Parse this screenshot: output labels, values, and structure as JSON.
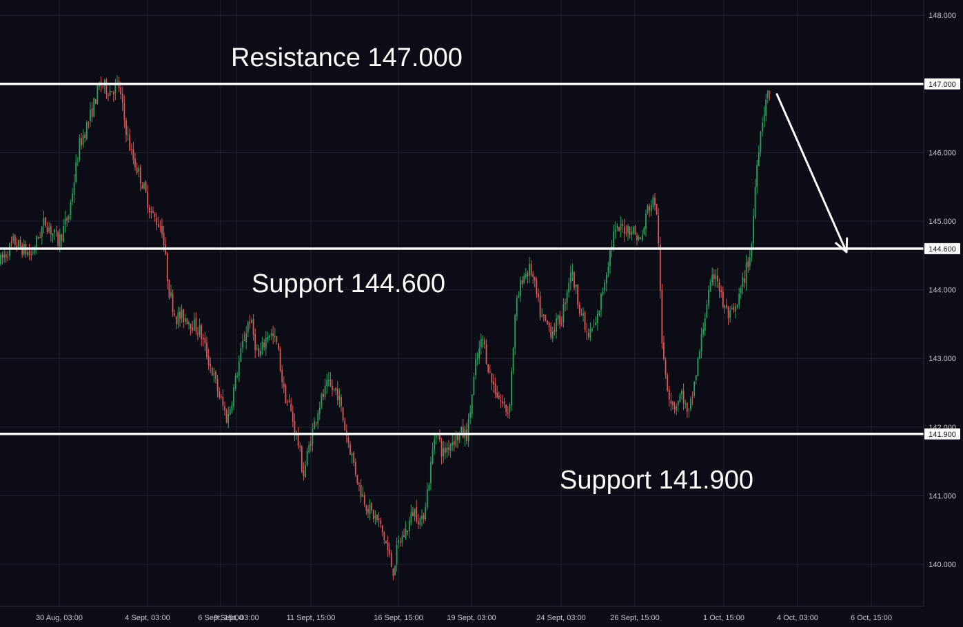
{
  "chart_data": {
    "type": "candlestick",
    "instrument": "",
    "ylim": [
      139.3,
      148.2
    ],
    "y_ticks": [
      "140.000",
      "141.000",
      "142.000",
      "143.000",
      "144.000",
      "145.000",
      "146.000",
      "147.000",
      "148.000"
    ],
    "x_ticks": [
      "30 Aug, 03:00",
      "4 Sept, 03:00",
      "6 Sept, 15:00",
      "9 Sept, 03:00",
      "11 Sept, 15:00",
      "16 Sept, 15:00",
      "19 Sept, 03:00",
      "24 Sept, 03:00",
      "26 Sept, 15:00",
      "1 Oct, 15:00",
      "4 Oct, 03:00",
      "6 Oct, 15:00"
    ],
    "colors": {
      "up": "#26a65b",
      "down": "#e05757",
      "level_line": "#ffffff",
      "grid": "#1f2230",
      "background": "#0b0c15"
    },
    "levels": [
      {
        "name": "Resistance",
        "value": 147.0,
        "label": "Resistance 147.000",
        "badge": "147.000"
      },
      {
        "name": "Support",
        "value": 144.6,
        "label": "Support 144.600",
        "badge": "144.600"
      },
      {
        "name": "Support",
        "value": 141.9,
        "label": "Support 141.900",
        "badge": "141.900"
      }
    ],
    "price_path": [
      [
        0,
        144.4
      ],
      [
        20,
        144.7
      ],
      [
        45,
        144.5
      ],
      [
        65,
        145.0
      ],
      [
        85,
        144.7
      ],
      [
        100,
        145.1
      ],
      [
        115,
        146.1
      ],
      [
        130,
        146.5
      ],
      [
        145,
        147.0
      ],
      [
        160,
        146.9
      ],
      [
        172,
        147.0
      ],
      [
        180,
        146.5
      ],
      [
        190,
        146.0
      ],
      [
        205,
        145.6
      ],
      [
        220,
        145.1
      ],
      [
        235,
        144.9
      ],
      [
        245,
        144.0
      ],
      [
        255,
        143.6
      ],
      [
        270,
        143.6
      ],
      [
        290,
        143.4
      ],
      [
        305,
        142.9
      ],
      [
        320,
        142.4
      ],
      [
        330,
        142.1
      ],
      [
        340,
        142.6
      ],
      [
        352,
        143.2
      ],
      [
        362,
        143.6
      ],
      [
        375,
        143.0
      ],
      [
        390,
        143.4
      ],
      [
        402,
        143.2
      ],
      [
        412,
        142.5
      ],
      [
        420,
        142.3
      ],
      [
        432,
        141.8
      ],
      [
        440,
        141.3
      ],
      [
        450,
        141.8
      ],
      [
        462,
        142.3
      ],
      [
        475,
        142.6
      ],
      [
        490,
        142.5
      ],
      [
        500,
        142.0
      ],
      [
        510,
        141.6
      ],
      [
        522,
        141.1
      ],
      [
        535,
        140.8
      ],
      [
        550,
        140.6
      ],
      [
        560,
        140.3
      ],
      [
        570,
        139.9
      ],
      [
        578,
        140.3
      ],
      [
        590,
        140.5
      ],
      [
        600,
        140.8
      ],
      [
        612,
        140.6
      ],
      [
        622,
        141.2
      ],
      [
        632,
        142.0
      ],
      [
        642,
        141.6
      ],
      [
        655,
        141.8
      ],
      [
        668,
        141.9
      ],
      [
        678,
        141.9
      ],
      [
        690,
        142.9
      ],
      [
        700,
        143.3
      ],
      [
        712,
        142.7
      ],
      [
        725,
        142.4
      ],
      [
        738,
        142.2
      ],
      [
        748,
        143.7
      ],
      [
        758,
        144.2
      ],
      [
        770,
        144.3
      ],
      [
        785,
        143.6
      ],
      [
        800,
        143.4
      ],
      [
        815,
        143.6
      ],
      [
        828,
        144.3
      ],
      [
        840,
        143.8
      ],
      [
        852,
        143.3
      ],
      [
        865,
        143.5
      ],
      [
        878,
        144.2
      ],
      [
        890,
        144.8
      ],
      [
        902,
        144.9
      ],
      [
        915,
        144.9
      ],
      [
        930,
        144.7
      ],
      [
        940,
        145.2
      ],
      [
        950,
        145.3
      ],
      [
        955,
        144.8
      ],
      [
        960,
        143.2
      ],
      [
        970,
        142.5
      ],
      [
        978,
        142.3
      ],
      [
        990,
        142.5
      ],
      [
        998,
        142.1
      ],
      [
        1005,
        142.5
      ],
      [
        1015,
        143.1
      ],
      [
        1025,
        143.8
      ],
      [
        1038,
        144.3
      ],
      [
        1048,
        143.8
      ],
      [
        1058,
        143.6
      ],
      [
        1068,
        143.7
      ],
      [
        1080,
        144.2
      ],
      [
        1090,
        144.6
      ],
      [
        1098,
        145.9
      ],
      [
        1106,
        146.5
      ],
      [
        1112,
        146.8
      ],
      [
        1118,
        146.9
      ]
    ],
    "forecast_arrow": {
      "from": [
        1127,
        146.85
      ],
      "to": [
        1228,
        144.55
      ],
      "direction": "down"
    }
  }
}
